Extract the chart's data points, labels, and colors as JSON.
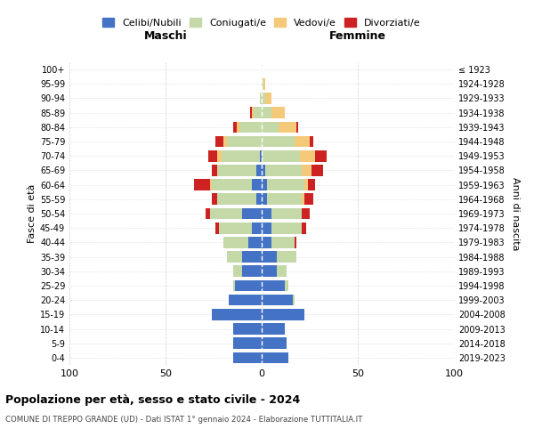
{
  "age_groups": [
    "0-4",
    "5-9",
    "10-14",
    "15-19",
    "20-24",
    "25-29",
    "30-34",
    "35-39",
    "40-44",
    "45-49",
    "50-54",
    "55-59",
    "60-64",
    "65-69",
    "70-74",
    "75-79",
    "80-84",
    "85-89",
    "90-94",
    "95-99",
    "100+"
  ],
  "birth_years": [
    "2019-2023",
    "2014-2018",
    "2009-2013",
    "2004-2008",
    "1999-2003",
    "1994-1998",
    "1989-1993",
    "1984-1988",
    "1979-1983",
    "1974-1978",
    "1969-1973",
    "1964-1968",
    "1959-1963",
    "1954-1958",
    "1949-1953",
    "1944-1948",
    "1939-1943",
    "1934-1938",
    "1929-1933",
    "1924-1928",
    "≤ 1923"
  ],
  "males": {
    "celibi": [
      15,
      15,
      15,
      26,
      17,
      14,
      10,
      10,
      7,
      5,
      10,
      3,
      5,
      3,
      1,
      0,
      0,
      0,
      0,
      0,
      0
    ],
    "coniugati": [
      0,
      0,
      0,
      0,
      0,
      1,
      5,
      8,
      13,
      17,
      17,
      20,
      21,
      20,
      20,
      18,
      11,
      4,
      1,
      0,
      0
    ],
    "vedovi": [
      0,
      0,
      0,
      0,
      0,
      0,
      0,
      0,
      0,
      0,
      0,
      0,
      1,
      0,
      2,
      2,
      2,
      1,
      0,
      0,
      0
    ],
    "divorziati": [
      0,
      0,
      0,
      0,
      0,
      0,
      0,
      0,
      0,
      2,
      2,
      3,
      8,
      3,
      5,
      4,
      2,
      1,
      0,
      0,
      0
    ]
  },
  "females": {
    "nubili": [
      14,
      13,
      12,
      22,
      16,
      12,
      8,
      8,
      5,
      5,
      5,
      3,
      3,
      2,
      0,
      0,
      0,
      0,
      0,
      0,
      0
    ],
    "coniugate": [
      0,
      0,
      0,
      0,
      1,
      2,
      5,
      10,
      12,
      16,
      16,
      18,
      19,
      19,
      20,
      17,
      9,
      5,
      2,
      1,
      0
    ],
    "vedove": [
      0,
      0,
      0,
      0,
      0,
      0,
      0,
      0,
      0,
      0,
      0,
      1,
      2,
      5,
      8,
      8,
      9,
      7,
      3,
      1,
      0
    ],
    "divorziate": [
      0,
      0,
      0,
      0,
      0,
      0,
      0,
      0,
      1,
      2,
      4,
      5,
      4,
      6,
      6,
      2,
      1,
      0,
      0,
      0,
      0
    ]
  },
  "colors": {
    "celibi_nubili": "#4472C4",
    "coniugati": "#C5D9A8",
    "vedovi": "#F5C97A",
    "divorziati": "#CC2222"
  },
  "title1": "Popolazione per età, sesso e stato civile - 2024",
  "title2": "COMUNE DI TREPPO GRANDE (UD) - Dati ISTAT 1° gennaio 2024 - Elaborazione TUTTITALIA.IT",
  "xlabel_left": "Maschi",
  "xlabel_right": "Femmine",
  "ylabel_left": "Fasce di età",
  "ylabel_right": "Anni di nascita",
  "xlim": 100,
  "legend_labels": [
    "Celibi/Nubili",
    "Coniugati/e",
    "Vedovi/e",
    "Divorziati/e"
  ],
  "bg_color": "#FFFFFF",
  "grid_color": "#BBBBBB"
}
